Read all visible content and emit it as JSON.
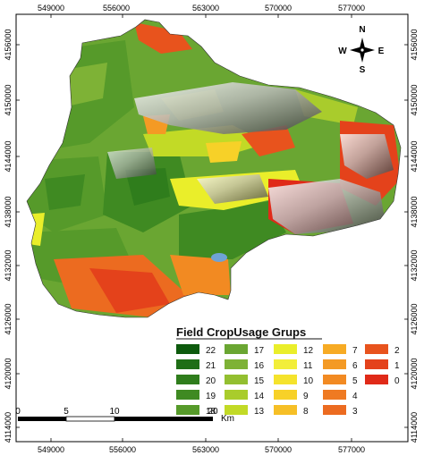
{
  "map": {
    "top_ticks": [
      "549000",
      "556000",
      "563000",
      "570000",
      "577000"
    ],
    "bottom_ticks": [
      "549000",
      "556000",
      "563000",
      "570000",
      "577000"
    ],
    "left_ticks": [
      "4156000",
      "4150000",
      "4144000",
      "4138000",
      "4132000",
      "4126000",
      "4120000",
      "4114000"
    ],
    "right_ticks": [
      "4156000",
      "4150000",
      "4144000",
      "4138000",
      "4132000",
      "4126000",
      "4120000",
      "4114000"
    ]
  },
  "compass": {
    "n": "N",
    "s": "S",
    "e": "E",
    "w": "W"
  },
  "legend": {
    "title": "Field CropUsage Grups",
    "items": [
      {
        "label": "22",
        "color": "#0d5a0d"
      },
      {
        "label": "21",
        "color": "#1f6e16"
      },
      {
        "label": "20",
        "color": "#2f7d1c"
      },
      {
        "label": "19",
        "color": "#3f8a22"
      },
      {
        "label": "18",
        "color": "#569a2a"
      },
      {
        "label": "17",
        "color": "#6aa632"
      },
      {
        "label": "16",
        "color": "#7eb236"
      },
      {
        "label": "15",
        "color": "#93bf30"
      },
      {
        "label": "14",
        "color": "#a9cc2c"
      },
      {
        "label": "13",
        "color": "#c2da26"
      },
      {
        "label": "12",
        "color": "#eaee2a"
      },
      {
        "label": "11",
        "color": "#f2ee3a"
      },
      {
        "label": "10",
        "color": "#f5e32c"
      },
      {
        "label": "9",
        "color": "#f7d128"
      },
      {
        "label": "8",
        "color": "#f6bf26"
      },
      {
        "label": "7",
        "color": "#f7ab24"
      },
      {
        "label": "6",
        "color": "#f49a24"
      },
      {
        "label": "5",
        "color": "#f28a22"
      },
      {
        "label": "4",
        "color": "#ef7a22"
      },
      {
        "label": "3",
        "color": "#ec6b20"
      },
      {
        "label": "2",
        "color": "#e8531d"
      },
      {
        "label": "1",
        "color": "#e4421b"
      },
      {
        "label": "0",
        "color": "#e02a18"
      }
    ]
  },
  "scalebar": {
    "labels": [
      "0",
      "5",
      "10",
      "20"
    ],
    "unit": "Km"
  }
}
